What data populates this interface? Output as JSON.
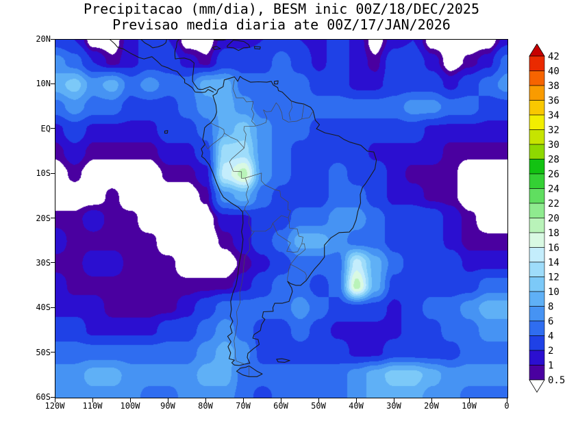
{
  "chart_data": {
    "type": "heatmap",
    "title": "Precipitacao (mm/dia), BESM inic 00Z/18/DEC/2025",
    "subtitle": "Previsao media diaria ate 00Z/17/JAN/2026",
    "units": "mm/dia",
    "map_region": "South America, Central America and adjacent oceans",
    "x_axis": {
      "ticks": [
        "120W",
        "110W",
        "100W",
        "90W",
        "80W",
        "70W",
        "60W",
        "50W",
        "40W",
        "30W",
        "20W",
        "10W",
        "0"
      ],
      "range_deg": [
        -120,
        0
      ]
    },
    "y_axis": {
      "ticks": [
        "20N",
        "10N",
        "EQ",
        "10S",
        "20S",
        "30S",
        "40S",
        "50S",
        "60S"
      ],
      "range_deg": [
        -60,
        20
      ]
    },
    "colorbar": {
      "labels": [
        "42",
        "40",
        "38",
        "36",
        "34",
        "32",
        "30",
        "28",
        "26",
        "24",
        "22",
        "20",
        "18",
        "16",
        "14",
        "12",
        "10",
        "8",
        "6",
        "4",
        "2",
        "1",
        "0.5"
      ],
      "levels": [
        0.5,
        1,
        2,
        4,
        6,
        8,
        10,
        12,
        14,
        16,
        18,
        20,
        22,
        24,
        26,
        28,
        30,
        32,
        34,
        36,
        38,
        40,
        42
      ],
      "colors_low_to_high": [
        "#4a00a0",
        "#2b0fd0",
        "#1f41e6",
        "#2f6df0",
        "#4693f3",
        "#5fb0f6",
        "#7cc9f8",
        "#9edcfa",
        "#c4edfc",
        "#d9f9e3",
        "#b9f3b9",
        "#8feb8f",
        "#60de60",
        "#34d034",
        "#12c212",
        "#8ed800",
        "#c6e400",
        "#f2ee00",
        "#f9c800",
        "#f99b00",
        "#f66400",
        "#ea2a00"
      ],
      "above_max_color": "#c60000",
      "below_min_color": "#ffffff"
    },
    "grid": {
      "lon_start": -120,
      "lon_step": 5,
      "lat_start": 20,
      "lat_step": -5,
      "units": "mm/dia",
      "values": [
        [
          3,
          2,
          0,
          0,
          1.5,
          3,
          2,
          0,
          0,
          1.5,
          1.5,
          2,
          3,
          2,
          1.5,
          3,
          1.5,
          0,
          1.5,
          2,
          0,
          0,
          0,
          0,
          1.5
        ],
        [
          7,
          5,
          2,
          0.7,
          1.5,
          3,
          3,
          1.5,
          0.7,
          3,
          3,
          3,
          5,
          3,
          1.5,
          3,
          1.5,
          0.7,
          3,
          3,
          1.5,
          0,
          0.7,
          1.5,
          5
        ],
        [
          9,
          11,
          7,
          9,
          5,
          7,
          5,
          5,
          9,
          9,
          5,
          5,
          5,
          5,
          3,
          3,
          1.5,
          1.5,
          3,
          3,
          3,
          1.5,
          3,
          5,
          7
        ],
        [
          5,
          7,
          5,
          5,
          3,
          3,
          3,
          5,
          7,
          9,
          7,
          5,
          5,
          5,
          5,
          5,
          5,
          5,
          5,
          7,
          7,
          5,
          5,
          3,
          3
        ],
        [
          1.5,
          3,
          1.5,
          1.5,
          1.5,
          1.5,
          3,
          3,
          5,
          9,
          11,
          7,
          5,
          5,
          3,
          3,
          3,
          3,
          3,
          3,
          1.5,
          1.5,
          1.5,
          1.5,
          1.5
        ],
        [
          0.7,
          1.5,
          0.7,
          0.7,
          0.7,
          0.7,
          1.5,
          1.5,
          3,
          13,
          13,
          7,
          5,
          3,
          3,
          3,
          3,
          1.5,
          1.5,
          1.5,
          1.5,
          0.7,
          0.7,
          0.7,
          0.7
        ],
        [
          0,
          0.7,
          0,
          0,
          0,
          0,
          0.7,
          0.7,
          1.5,
          15,
          19,
          7,
          5,
          3,
          3,
          5,
          3,
          3,
          1.5,
          0.7,
          0.7,
          0.7,
          0,
          0,
          0
        ],
        [
          0,
          0,
          0,
          0.7,
          0,
          0,
          0,
          0,
          0.7,
          7,
          9,
          5,
          3,
          3,
          3,
          5,
          5,
          3,
          1.5,
          1.5,
          0.7,
          0.7,
          0,
          0,
          0
        ],
        [
          0.7,
          0.7,
          1.5,
          0.7,
          0.7,
          0,
          0,
          0,
          0,
          1.5,
          1.5,
          3,
          3,
          5,
          5,
          7,
          7,
          5,
          3,
          3,
          3,
          1.5,
          0.7,
          0,
          0
        ],
        [
          1.5,
          0.7,
          0.7,
          0.7,
          0.7,
          0.7,
          0,
          0,
          0,
          0.7,
          1.5,
          3,
          5,
          9,
          9,
          7,
          5,
          5,
          3,
          3,
          3,
          1.5,
          0.7,
          0.7,
          0.7
        ],
        [
          0.7,
          0.7,
          1.5,
          1.5,
          0.7,
          0.7,
          0.7,
          0,
          0,
          0,
          0.7,
          1.5,
          3,
          5,
          5,
          5,
          15,
          9,
          5,
          3,
          3,
          3,
          1.5,
          1.5,
          1.5
        ],
        [
          1.5,
          0.7,
          0.7,
          0.7,
          0.7,
          0.7,
          0.7,
          0.7,
          0.7,
          0.7,
          1.5,
          3,
          5,
          5,
          3,
          5,
          19,
          9,
          3,
          3,
          3,
          3,
          3,
          5,
          5
        ],
        [
          1.5,
          1.5,
          1.5,
          0.7,
          0.7,
          0.7,
          0.7,
          1.5,
          3,
          5,
          5,
          5,
          5,
          7,
          5,
          3,
          3,
          3,
          1.5,
          3,
          5,
          5,
          7,
          9,
          9
        ],
        [
          3,
          3,
          1.5,
          1.5,
          1.5,
          1.5,
          3,
          3,
          5,
          7,
          5,
          3,
          3,
          5,
          3,
          1.5,
          1.5,
          1.5,
          1.5,
          3,
          3,
          5,
          5,
          7,
          7
        ],
        [
          5,
          5,
          5,
          5,
          5,
          5,
          5,
          5,
          7,
          9,
          7,
          3,
          3,
          3,
          3,
          3,
          1.5,
          1.5,
          3,
          3,
          3,
          3,
          5,
          5,
          5
        ],
        [
          7,
          7,
          9,
          9,
          7,
          7,
          7,
          7,
          9,
          9,
          5,
          5,
          5,
          5,
          5,
          5,
          7,
          9,
          11,
          11,
          9,
          7,
          7,
          7,
          7
        ],
        [
          7,
          7,
          7,
          7,
          7,
          5,
          5,
          7,
          7,
          7,
          5,
          3,
          5,
          5,
          5,
          5,
          7,
          9,
          9,
          9,
          7,
          7,
          5,
          5,
          5
        ]
      ]
    }
  }
}
